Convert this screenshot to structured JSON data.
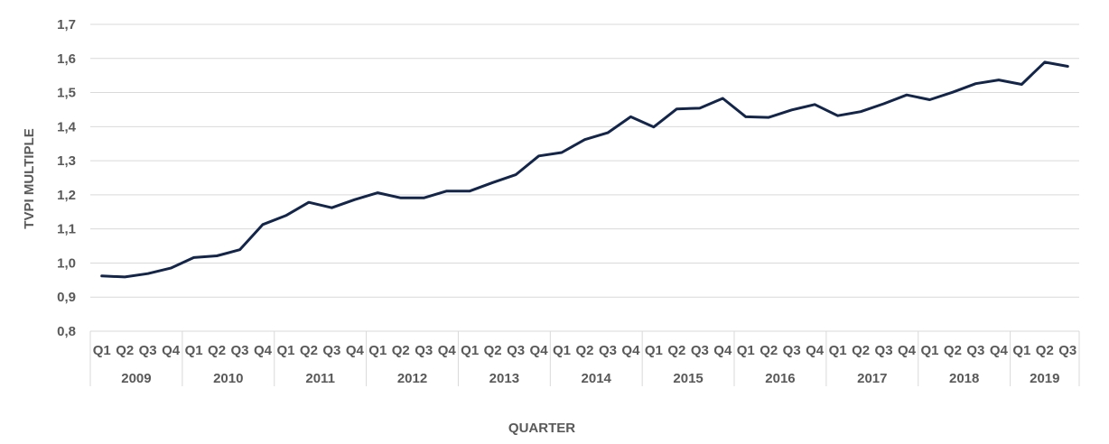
{
  "chart_data": {
    "type": "line",
    "title": "",
    "xlabel": "QUARTER",
    "ylabel": "TVPI MULTIPLE",
    "ylim": [
      0.8,
      1.7
    ],
    "yticks": [
      "0,8",
      "0,9",
      "1,0",
      "1,1",
      "1,2",
      "1,3",
      "1,4",
      "1,5",
      "1,6",
      "1,7"
    ],
    "grid": true,
    "legend": "none",
    "line_color": "#14254a",
    "years": [
      {
        "label": "2009",
        "quarters": [
          "Q1",
          "Q2",
          "Q3",
          "Q4"
        ]
      },
      {
        "label": "2010",
        "quarters": [
          "Q1",
          "Q2",
          "Q3",
          "Q4"
        ]
      },
      {
        "label": "2011",
        "quarters": [
          "Q1",
          "Q2",
          "Q3",
          "Q4"
        ]
      },
      {
        "label": "2012",
        "quarters": [
          "Q1",
          "Q2",
          "Q3",
          "Q4"
        ]
      },
      {
        "label": "2013",
        "quarters": [
          "Q1",
          "Q2",
          "Q3",
          "Q4"
        ]
      },
      {
        "label": "2014",
        "quarters": [
          "Q1",
          "Q2",
          "Q3",
          "Q4"
        ]
      },
      {
        "label": "2015",
        "quarters": [
          "Q1",
          "Q2",
          "Q3",
          "Q4"
        ]
      },
      {
        "label": "2016",
        "quarters": [
          "Q1",
          "Q2",
          "Q3",
          "Q4"
        ]
      },
      {
        "label": "2017",
        "quarters": [
          "Q1",
          "Q2",
          "Q3",
          "Q4"
        ]
      },
      {
        "label": "2018",
        "quarters": [
          "Q1",
          "Q2",
          "Q3",
          "Q4"
        ]
      },
      {
        "label": "2019",
        "quarters": [
          "Q1",
          "Q2",
          "Q3"
        ]
      }
    ],
    "values": [
      0.962,
      0.959,
      0.969,
      0.985,
      1.016,
      1.021,
      1.039,
      1.113,
      1.139,
      1.178,
      1.162,
      1.186,
      1.206,
      1.191,
      1.191,
      1.211,
      1.211,
      1.236,
      1.259,
      1.314,
      1.324,
      1.362,
      1.382,
      1.429,
      1.399,
      1.452,
      1.454,
      1.483,
      1.429,
      1.427,
      1.449,
      1.465,
      1.432,
      1.444,
      1.467,
      1.493,
      1.479,
      1.501,
      1.526,
      1.537,
      1.524,
      1.589,
      1.577
    ]
  }
}
